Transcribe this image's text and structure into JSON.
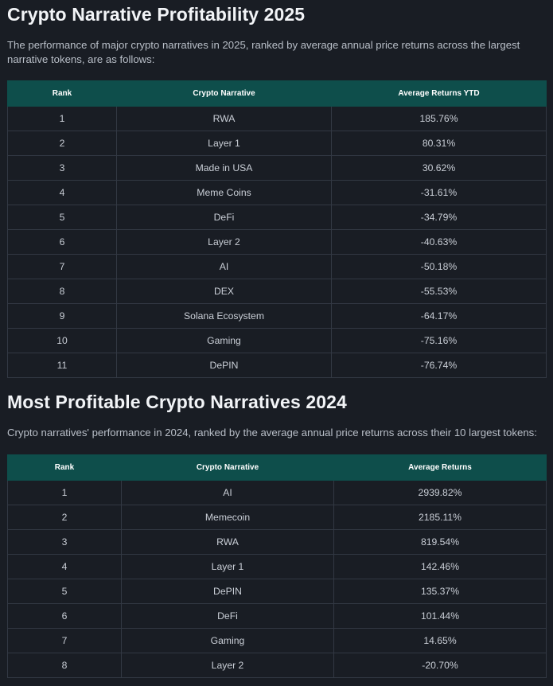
{
  "section1": {
    "title": "Crypto Narrative Profitability 2025",
    "description": "The performance of major crypto narratives in 2025, ranked by average annual price returns across the largest narrative tokens, are as follows:",
    "headers": [
      "Rank",
      "Crypto Narrative",
      "Average Returns YTD"
    ],
    "rows": [
      [
        "1",
        "RWA",
        "185.76%"
      ],
      [
        "2",
        "Layer 1",
        "80.31%"
      ],
      [
        "3",
        "Made in USA",
        "30.62%"
      ],
      [
        "4",
        "Meme Coins",
        "-31.61%"
      ],
      [
        "5",
        "DeFi",
        "-34.79%"
      ],
      [
        "6",
        "Layer 2",
        "-40.63%"
      ],
      [
        "7",
        "AI",
        "-50.18%"
      ],
      [
        "8",
        "DEX",
        "-55.53%"
      ],
      [
        "9",
        "Solana Ecosystem",
        "-64.17%"
      ],
      [
        "10",
        "Gaming",
        "-75.16%"
      ],
      [
        "11",
        "DePIN",
        "-76.74%"
      ]
    ]
  },
  "section2": {
    "title": "Most Profitable Crypto Narratives 2024",
    "description": "Crypto narratives' performance in 2024, ranked by the average annual price returns across their 10 largest tokens:",
    "headers": [
      "Rank",
      "Crypto Narrative",
      "Average Returns"
    ],
    "rows": [
      [
        "1",
        "AI",
        "2939.82%"
      ],
      [
        "2",
        "Memecoin",
        "2185.11%"
      ],
      [
        "3",
        "RWA",
        "819.54%"
      ],
      [
        "4",
        "Layer 1",
        "142.46%"
      ],
      [
        "5",
        "DePIN",
        "135.37%"
      ],
      [
        "6",
        "DeFi",
        "101.44%"
      ],
      [
        "7",
        "Gaming",
        "14.65%"
      ],
      [
        "8",
        "Layer 2",
        "-20.70%"
      ]
    ]
  },
  "colors": {
    "background": "#191d24",
    "table_header": "#0e4e4b",
    "border": "#323843",
    "title": "#f2f4f7"
  }
}
